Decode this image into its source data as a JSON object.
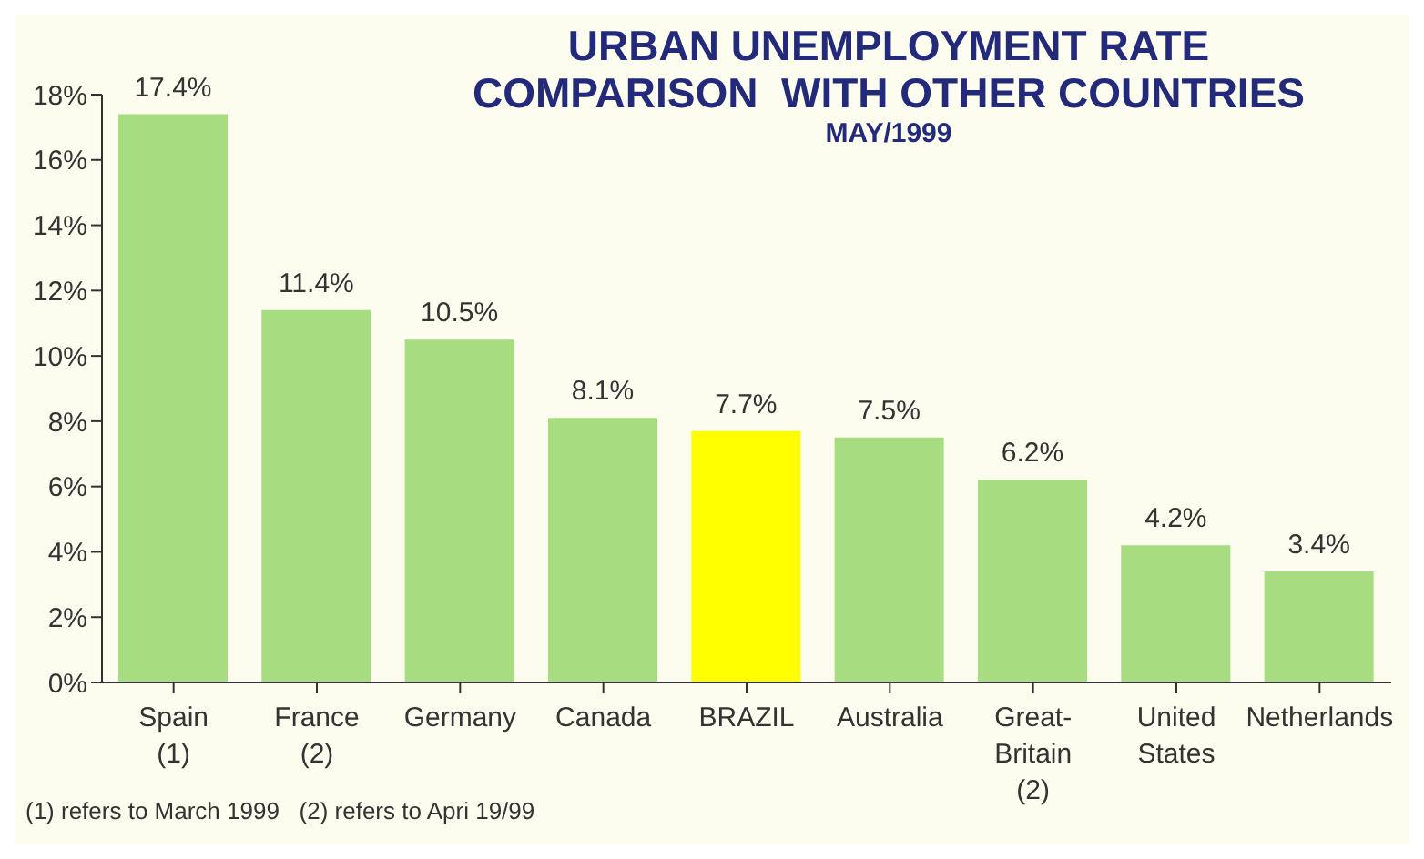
{
  "chart_data": {
    "type": "bar",
    "title": "URBAN UNEMPLOYMENT RATE\nCOMPARISON  WITH OTHER COUNTRIES",
    "subtitle": "MAY/1999",
    "categories": [
      "Spain\n(1)",
      "France\n(2)",
      "Germany",
      "Canada",
      "BRAZIL",
      "Australia",
      "Great-\nBritain\n(2)",
      "United\nStates",
      "Netherlands"
    ],
    "values": [
      17.4,
      11.4,
      10.5,
      8.1,
      7.7,
      7.5,
      6.2,
      4.2,
      3.4
    ],
    "colors": [
      "#a8dc80",
      "#a8dc80",
      "#a8dc80",
      "#a8dc80",
      "#ffff00",
      "#a8dc80",
      "#a8dc80",
      "#a8dc80",
      "#a8dc80"
    ],
    "value_labels": [
      "17.4%",
      "11.4%",
      "10.5%",
      "8.1%",
      "7.7%",
      "7.5%",
      "6.2%",
      "4.2%",
      "3.4%"
    ],
    "ylim": [
      0,
      18
    ],
    "yticks": [
      {
        "value": 0,
        "label": "0%"
      },
      {
        "value": 2,
        "label": "2%"
      },
      {
        "value": 4,
        "label": "4%"
      },
      {
        "value": 6,
        "label": "6%"
      },
      {
        "value": 8,
        "label": "8%"
      },
      {
        "value": 10,
        "label": "10%"
      },
      {
        "value": 12,
        "label": "12%"
      },
      {
        "value": 14,
        "label": "14%"
      },
      {
        "value": 16,
        "label": "16%"
      },
      {
        "value": 18,
        "label": "18%"
      }
    ],
    "grid": false,
    "legend": false,
    "annotations": [
      "(1) refers to March 1999   (2) refers to Apri 19/99"
    ]
  }
}
